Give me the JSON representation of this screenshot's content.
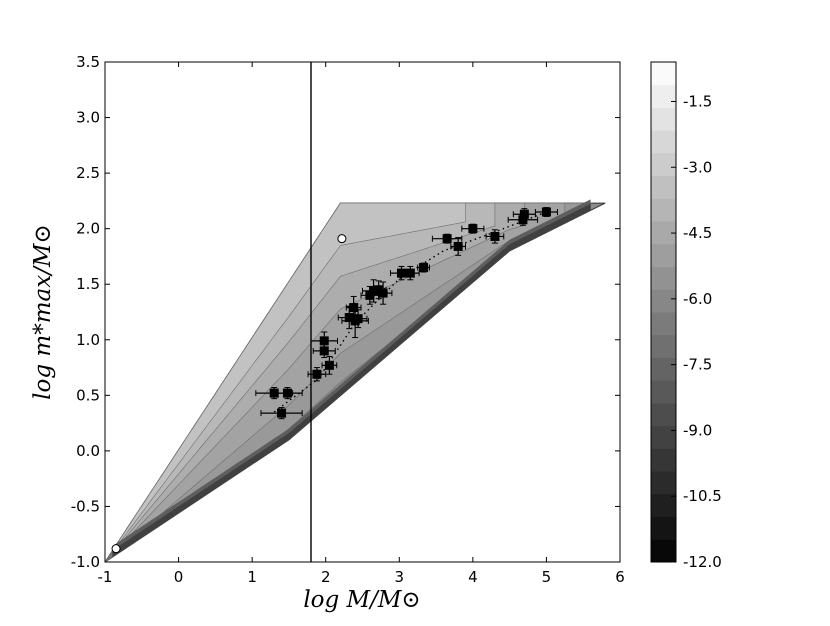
{
  "chart_data": {
    "type": "scatter",
    "title": "",
    "xlabel": "log M/M⊙",
    "ylabel": "log m*max/M⊙",
    "xlim": [
      -1,
      6
    ],
    "ylim": [
      -1.0,
      3.5
    ],
    "xticks": [
      "-1",
      "0",
      "1",
      "2",
      "3",
      "4",
      "5",
      "6"
    ],
    "yticks": [
      "-1.0",
      "-0.5",
      "0.0",
      "0.5",
      "1.0",
      "1.5",
      "2.0",
      "2.5",
      "3.0",
      "3.5"
    ],
    "grid": false,
    "vertical_line_x": 1.8,
    "colorbar": {
      "range": [
        -12.0,
        -0.6
      ],
      "tick_labels": [
        "-1.5",
        "-3.0",
        "-4.5",
        "-6.0",
        "-7.5",
        "-9.0",
        "-10.5",
        "-12.0"
      ],
      "tick_values": [
        -1.5,
        -3.0,
        -4.5,
        -6.0,
        -7.5,
        -9.0,
        -10.5,
        -12.0
      ],
      "levels": 22
    },
    "region": {
      "upper_left_edge": [
        [
          -1.0,
          -1.0
        ],
        [
          2.2,
          2.23
        ]
      ],
      "plateau": [
        [
          2.2,
          2.23
        ],
        [
          5.8,
          2.23
        ]
      ],
      "lower_edge": [
        [
          -1.0,
          -1.0
        ],
        [
          1.5,
          0.1
        ],
        [
          3.0,
          0.95
        ],
        [
          4.5,
          1.8
        ],
        [
          5.8,
          2.23
        ]
      ]
    },
    "points": [
      {
        "x": 1.3,
        "y": 0.52,
        "xerr": 0.25,
        "yerr": 0.05
      },
      {
        "x": 1.48,
        "y": 0.52,
        "xerr": 0.2,
        "yerr": 0.05
      },
      {
        "x": 1.4,
        "y": 0.34,
        "xerr": 0.28,
        "yerr": 0.05
      },
      {
        "x": 1.88,
        "y": 0.69,
        "xerr": 0.12,
        "yerr": 0.06
      },
      {
        "x": 1.98,
        "y": 0.99,
        "xerr": 0.18,
        "yerr": 0.08
      },
      {
        "x": 1.98,
        "y": 0.9,
        "xerr": 0.15,
        "yerr": 0.06
      },
      {
        "x": 2.05,
        "y": 0.77,
        "xerr": 0.1,
        "yerr": 0.08
      },
      {
        "x": 2.32,
        "y": 1.2,
        "xerr": 0.15,
        "yerr": 0.1
      },
      {
        "x": 2.38,
        "y": 1.29,
        "xerr": 0.1,
        "yerr": 0.1
      },
      {
        "x": 2.4,
        "y": 1.17,
        "xerr": 0.18,
        "yerr": 0.15
      },
      {
        "x": 2.44,
        "y": 1.19,
        "xerr": 0.12,
        "yerr": 0.08
      },
      {
        "x": 2.6,
        "y": 1.4,
        "xerr": 0.12,
        "yerr": 0.08
      },
      {
        "x": 2.65,
        "y": 1.44,
        "xerr": 0.15,
        "yerr": 0.1
      },
      {
        "x": 2.72,
        "y": 1.45,
        "xerr": 0.1,
        "yerr": 0.08
      },
      {
        "x": 2.78,
        "y": 1.42,
        "xerr": 0.12,
        "yerr": 0.1
      },
      {
        "x": 3.03,
        "y": 1.6,
        "xerr": 0.15,
        "yerr": 0.06
      },
      {
        "x": 3.15,
        "y": 1.6,
        "xerr": 0.12,
        "yerr": 0.06
      },
      {
        "x": 3.33,
        "y": 1.65,
        "xerr": 0.08,
        "yerr": 0.04
      },
      {
        "x": 3.65,
        "y": 1.91,
        "xerr": 0.2,
        "yerr": 0.04
      },
      {
        "x": 3.8,
        "y": 1.84,
        "xerr": 0.1,
        "yerr": 0.08
      },
      {
        "x": 4.0,
        "y": 2.0,
        "xerr": 0.15,
        "yerr": 0.04
      },
      {
        "x": 4.3,
        "y": 1.93,
        "xerr": 0.12,
        "yerr": 0.06
      },
      {
        "x": 4.68,
        "y": 2.08,
        "xerr": 0.2,
        "yerr": 0.05
      },
      {
        "x": 4.7,
        "y": 2.13,
        "xerr": 0.15,
        "yerr": 0.05
      },
      {
        "x": 5.0,
        "y": 2.15,
        "xerr": 0.15,
        "yerr": 0.04
      }
    ],
    "special_points": [
      {
        "x": 2.22,
        "y": 1.91,
        "marker": "open-circle"
      },
      {
        "x": -0.85,
        "y": -0.88,
        "marker": "open-circle"
      }
    ],
    "trend_line": [
      [
        1.3,
        0.35
      ],
      [
        1.9,
        0.65
      ],
      [
        2.4,
        1.15
      ],
      [
        3.0,
        1.55
      ],
      [
        3.6,
        1.8
      ],
      [
        4.3,
        1.97
      ],
      [
        5.0,
        2.15
      ]
    ]
  }
}
